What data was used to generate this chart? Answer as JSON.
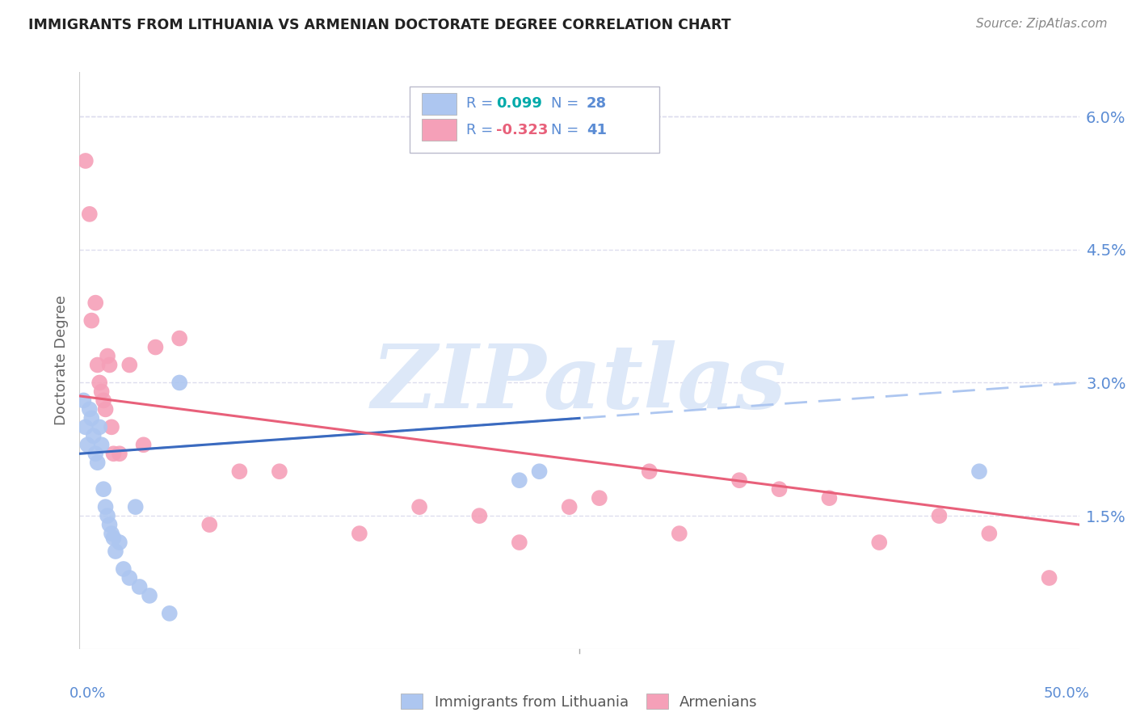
{
  "title": "IMMIGRANTS FROM LITHUANIA VS ARMENIAN DOCTORATE DEGREE CORRELATION CHART",
  "source": "Source: ZipAtlas.com",
  "ylabel": "Doctorate Degree",
  "xmin": 0.0,
  "xmax": 50.0,
  "ymin": 0.0,
  "ymax": 6.5,
  "yticks": [
    1.5,
    3.0,
    4.5,
    6.0
  ],
  "ytick_labels": [
    "1.5%",
    "3.0%",
    "4.5%",
    "6.0%"
  ],
  "xtick_left": "0.0%",
  "xtick_right": "50.0%",
  "dot_color_blue": "#adc6f0",
  "dot_color_pink": "#f5a0b8",
  "line_color_blue_solid": "#3a6abf",
  "line_color_blue_dashed": "#adc6f0",
  "line_color_pink": "#e8607a",
  "right_axis_color": "#5b8cd4",
  "grid_color": "#ddddee",
  "background_color": "#ffffff",
  "watermark_text": "ZIPatlas",
  "watermark_color": "#dde8f8",
  "legend_box_color": "#ffffff",
  "legend_border_color": "#cccccc",
  "legend_r1_color": "#5b8cd4",
  "legend_val1_color": "#00aaaa",
  "legend_r2_color": "#5b8cd4",
  "legend_val2_color": "#e8607a",
  "legend_n_color": "#5b8cd4",
  "blue_dots_x": [
    0.2,
    0.3,
    0.4,
    0.5,
    0.6,
    0.7,
    0.8,
    0.9,
    1.0,
    1.1,
    1.2,
    1.3,
    1.4,
    1.5,
    1.6,
    1.7,
    1.8,
    2.0,
    2.2,
    2.5,
    2.8,
    3.0,
    3.5,
    4.5,
    5.0,
    22.0,
    23.0,
    45.0
  ],
  "blue_dots_y": [
    2.8,
    2.5,
    2.3,
    2.7,
    2.6,
    2.4,
    2.2,
    2.1,
    2.5,
    2.3,
    1.8,
    1.6,
    1.5,
    1.4,
    1.3,
    1.25,
    1.1,
    1.2,
    0.9,
    0.8,
    1.6,
    0.7,
    0.6,
    0.4,
    3.0,
    1.9,
    2.0,
    2.0
  ],
  "pink_dots_x": [
    0.3,
    0.5,
    0.6,
    0.8,
    0.9,
    1.0,
    1.1,
    1.2,
    1.3,
    1.4,
    1.5,
    1.6,
    1.7,
    2.0,
    2.5,
    3.2,
    3.8,
    5.0,
    6.5,
    8.0,
    10.0,
    14.0,
    17.0,
    20.0,
    22.0,
    24.5,
    26.0,
    28.5,
    30.0,
    33.0,
    35.0,
    37.5,
    40.0,
    43.0,
    45.5,
    48.5
  ],
  "pink_dots_y": [
    5.5,
    4.9,
    3.7,
    3.9,
    3.2,
    3.0,
    2.9,
    2.8,
    2.7,
    3.3,
    3.2,
    2.5,
    2.2,
    2.2,
    3.2,
    2.3,
    3.4,
    3.5,
    1.4,
    2.0,
    2.0,
    1.3,
    1.6,
    1.5,
    1.2,
    1.6,
    1.7,
    2.0,
    1.3,
    1.9,
    1.8,
    1.7,
    1.2,
    1.5,
    1.3,
    0.8
  ],
  "blue_trend_x0": 0.0,
  "blue_trend_x1": 50.0,
  "blue_trend_y0": 2.2,
  "blue_trend_y1": 3.0,
  "blue_solid_x1": 25.0,
  "pink_trend_x0": 0.0,
  "pink_trend_x1": 50.0,
  "pink_trend_y0": 2.85,
  "pink_trend_y1": 1.4,
  "bottom_legend_label1": "Immigrants from Lithuania",
  "bottom_legend_label2": "Armenians"
}
